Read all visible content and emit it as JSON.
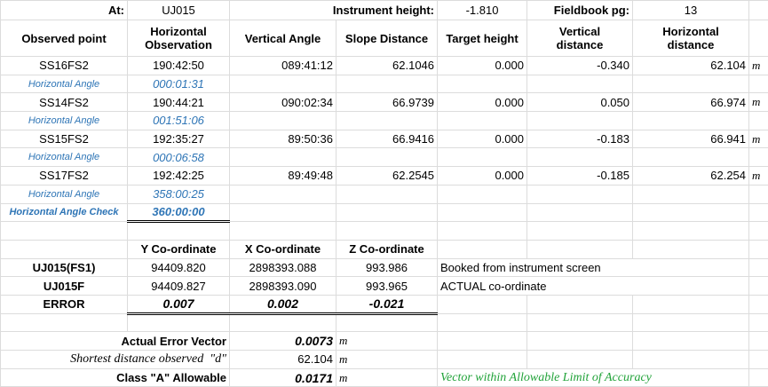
{
  "header": {
    "at_label": "At:",
    "at_value": "UJ015",
    "instrument_height_label": "Instrument height:",
    "instrument_height_value": "-1.810",
    "fieldbook_label": "Fieldbook pg:",
    "fieldbook_value": "13"
  },
  "table": {
    "columns": [
      "Observed point",
      "Horizontal Observation",
      "Vertical Angle",
      "Slope Distance",
      "Target height",
      "Vertical distance",
      "Horizontal distance"
    ],
    "unit": "m",
    "rows": [
      {
        "point": "SS16FS2",
        "horizontal_observation": "190:42:50",
        "vertical_angle": "089:41:12",
        "slope_distance": "62.1046",
        "target_height": "0.000",
        "vertical_distance": "-0.340",
        "horizontal_distance": "62.104",
        "angle_label": "Horizontal Angle",
        "angle_value": "000:01:31"
      },
      {
        "point": "SS14FS2",
        "horizontal_observation": "190:44:21",
        "vertical_angle": "090:02:34",
        "slope_distance": "66.9739",
        "target_height": "0.000",
        "vertical_distance": "0.050",
        "horizontal_distance": "66.974",
        "angle_label": "Horizontal Angle",
        "angle_value": "001:51:06"
      },
      {
        "point": "SS15FS2",
        "horizontal_observation": "192:35:27",
        "vertical_angle": "89:50:36",
        "slope_distance": "66.9416",
        "target_height": "0.000",
        "vertical_distance": "-0.183",
        "horizontal_distance": "66.941",
        "angle_label": "Horizontal Angle",
        "angle_value": "000:06:58"
      },
      {
        "point": "SS17FS2",
        "horizontal_observation": "192:42:25",
        "vertical_angle": "89:49:48",
        "slope_distance": "62.2545",
        "target_height": "0.000",
        "vertical_distance": "-0.185",
        "horizontal_distance": "62.254",
        "angle_label": "Horizontal Angle",
        "angle_value": "358:00:25"
      }
    ],
    "check_label": "Horizontal Angle Check",
    "check_value": "360:00:00"
  },
  "coordinates": {
    "columns": [
      "Y Co-ordinate",
      "X Co-ordinate",
      "Z Co-ordinate"
    ],
    "rows": [
      {
        "name": "UJ015(FS1)",
        "y": "94409.820",
        "x": "2898393.088",
        "z": "993.986",
        "note": "Booked from instrument screen"
      },
      {
        "name": "UJ015F",
        "y": "94409.827",
        "x": "2898393.090",
        "z": "993.965",
        "note": "ACTUAL co-ordinate"
      }
    ],
    "error": {
      "name": "ERROR",
      "y": "0.007",
      "x": "0.002",
      "z": "-0.021"
    }
  },
  "summary": {
    "actual_error_vector_label": "Actual Error Vector",
    "actual_error_vector": "0.0073",
    "shortest_label": "Shortest distance observed  \"d\"",
    "shortest": "62.104",
    "class_a_label": "Class \"A\" Allowable",
    "class_a": "0.0171",
    "verdict": "Vector within Allowable Limit of Accuracy"
  }
}
